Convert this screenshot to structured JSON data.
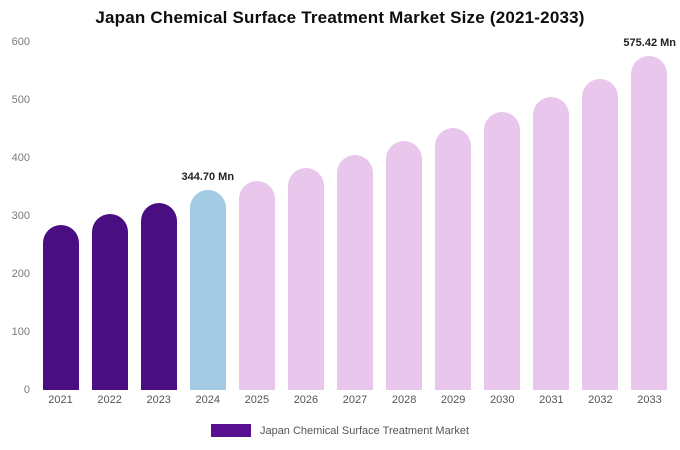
{
  "title": "Japan Chemical Surface Treatment Market Size (2021-2033)",
  "legend": {
    "label": "Japan Chemical Surface Treatment Market",
    "color": "#5a1191"
  },
  "colors": {
    "historical": "#4a0e83",
    "highlight": "#a3cbe3",
    "forecast": "#e9c6ec"
  },
  "chart_data": {
    "type": "bar",
    "title": "Japan Chemical Surface Treatment Market Size (2021-2033)",
    "xlabel": "",
    "ylabel": "",
    "ylim": [
      0,
      600
    ],
    "ytick_step": 100,
    "grid": false,
    "legend_position": "bottom",
    "categories": [
      "2021",
      "2022",
      "2023",
      "2024",
      "2025",
      "2026",
      "2027",
      "2028",
      "2029",
      "2030",
      "2031",
      "2032",
      "2033"
    ],
    "values": [
      285,
      303,
      322,
      344.7,
      360,
      383,
      406,
      429,
      452,
      479,
      506,
      537,
      575.42
    ],
    "bar_colors": [
      "#4a0e83",
      "#4a0e83",
      "#4a0e83",
      "#a3cbe3",
      "#e9c6ec",
      "#e9c6ec",
      "#e9c6ec",
      "#e9c6ec",
      "#e9c6ec",
      "#e9c6ec",
      "#e9c6ec",
      "#e9c6ec",
      "#e9c6ec"
    ],
    "annotations": [
      {
        "category": "2024",
        "text": "344.70 Mn"
      },
      {
        "category": "2033",
        "text": "575.42 Mn"
      }
    ],
    "series_name": "Japan Chemical Surface Treatment Market"
  }
}
